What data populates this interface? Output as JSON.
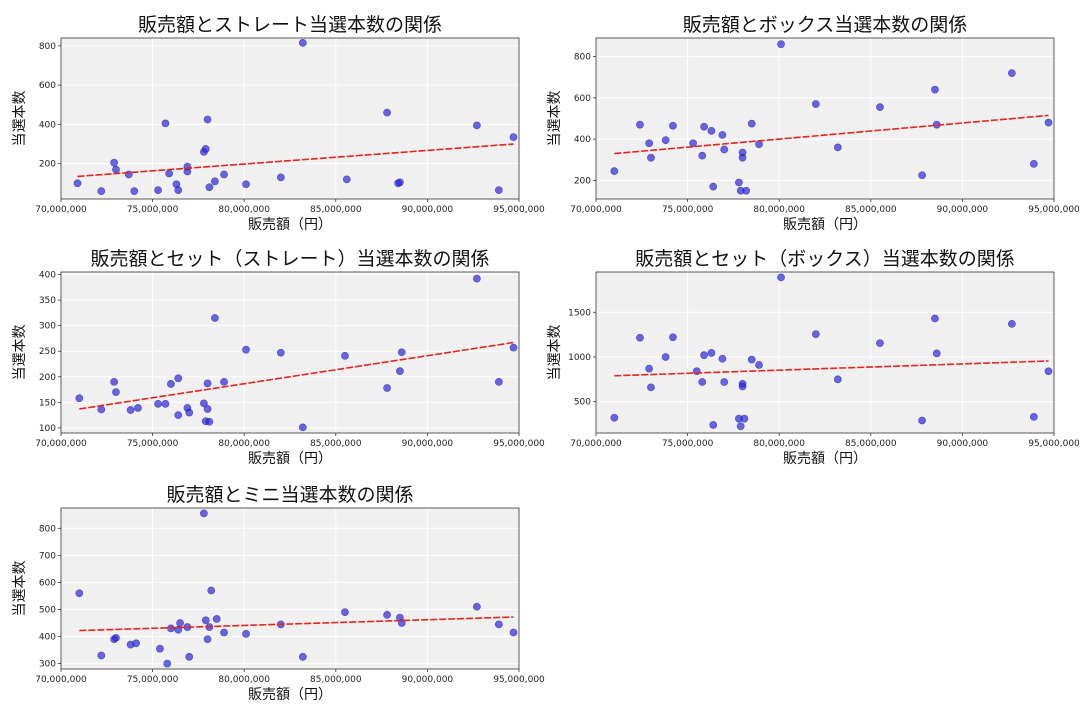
{
  "chart_data": [
    {
      "type": "scatter",
      "title": "販売額とストレート当選本数の関係",
      "xlabel": "販売額（円）",
      "ylabel": "当選本数",
      "xlim": [
        70000000,
        95000000
      ],
      "ylim": [
        20,
        840
      ],
      "x_ticks": [
        70000000,
        75000000,
        80000000,
        85000000,
        90000000,
        95000000
      ],
      "x_tick_labels": [
        "70,000,000",
        "75,000,000",
        "80,000,000",
        "85,000,000",
        "90,000,000",
        "95,000,000"
      ],
      "y_ticks": [
        200,
        400,
        600,
        800
      ],
      "y_tick_labels": [
        "200",
        "400",
        "600",
        "800"
      ],
      "x": [
        70900000,
        72200000,
        72900000,
        73000000,
        73700000,
        74000000,
        75300000,
        75700000,
        75900000,
        76300000,
        76400000,
        76900000,
        76900000,
        77800000,
        77900000,
        78000000,
        78100000,
        78400000,
        78900000,
        80100000,
        82000000,
        83200000,
        85600000,
        87800000,
        88400000,
        88500000,
        92700000,
        93900000,
        94700000
      ],
      "y": [
        100,
        60,
        205,
        170,
        145,
        60,
        65,
        405,
        150,
        95,
        65,
        185,
        160,
        260,
        275,
        425,
        80,
        110,
        145,
        95,
        130,
        815,
        120,
        460,
        100,
        105,
        395,
        65,
        335
      ],
      "trend": [
        135,
        300
      ]
    },
    {
      "type": "scatter",
      "title": "販売額とボックス当選本数の関係",
      "xlabel": "販売額（円）",
      "ylabel": "当選本数",
      "xlim": [
        70000000,
        95000000
      ],
      "ylim": [
        110,
        890
      ],
      "x_ticks": [
        70000000,
        75000000,
        80000000,
        85000000,
        90000000,
        95000000
      ],
      "x_tick_labels": [
        "70,000,000",
        "75,000,000",
        "80,000,000",
        "85,000,000",
        "90,000,000",
        "95,000,000"
      ],
      "y_ticks": [
        200,
        400,
        600,
        800
      ],
      "y_tick_labels": [
        "200",
        "400",
        "600",
        "800"
      ],
      "x": [
        71000000,
        72400000,
        72900000,
        73000000,
        73800000,
        74200000,
        75300000,
        75800000,
        75900000,
        76300000,
        76400000,
        76900000,
        77000000,
        77800000,
        77900000,
        78000000,
        78000000,
        78200000,
        78500000,
        78900000,
        80100000,
        82000000,
        83200000,
        85500000,
        87800000,
        88500000,
        88600000,
        92700000,
        93900000,
        94700000
      ],
      "y": [
        245,
        470,
        380,
        310,
        395,
        465,
        380,
        320,
        460,
        440,
        170,
        420,
        350,
        190,
        150,
        335,
        310,
        150,
        475,
        375,
        860,
        570,
        360,
        555,
        225,
        640,
        470,
        720,
        280,
        480
      ],
      "trend": [
        330,
        515
      ]
    },
    {
      "type": "scatter",
      "title": "販売額とセット（ストレート）当選本数の関係",
      "xlabel": "販売額（円）",
      "ylabel": "当選本数",
      "xlim": [
        70000000,
        95000000
      ],
      "ylim": [
        90,
        405
      ],
      "x_ticks": [
        70000000,
        75000000,
        80000000,
        85000000,
        90000000,
        95000000
      ],
      "x_tick_labels": [
        "70,000,000",
        "75,000,000",
        "80,000,000",
        "85,000,000",
        "90,000,000",
        "95,000,000"
      ],
      "y_ticks": [
        100,
        150,
        200,
        250,
        300,
        350,
        400
      ],
      "y_tick_labels": [
        "100",
        "150",
        "200",
        "250",
        "300",
        "350",
        "400"
      ],
      "x": [
        71000000,
        72200000,
        72900000,
        73000000,
        73800000,
        74200000,
        75300000,
        75700000,
        76000000,
        76400000,
        76400000,
        76900000,
        77000000,
        77800000,
        77900000,
        78000000,
        78000000,
        78100000,
        78400000,
        78900000,
        80100000,
        82000000,
        83200000,
        85500000,
        87800000,
        88500000,
        88600000,
        92700000,
        93900000,
        94700000
      ],
      "y": [
        158,
        136,
        190,
        170,
        135,
        139,
        147,
        147,
        186,
        125,
        197,
        139,
        130,
        148,
        113,
        187,
        137,
        112,
        315,
        190,
        253,
        247,
        101,
        241,
        178,
        211,
        248,
        392,
        190,
        257
      ],
      "trend": [
        137,
        267
      ]
    },
    {
      "type": "scatter",
      "title": "販売額とセット（ボックス）当選本数の関係",
      "xlabel": "販売額（円）",
      "ylabel": "当選本数",
      "xlim": [
        70000000,
        95000000
      ],
      "ylim": [
        150,
        1950
      ],
      "x_ticks": [
        70000000,
        75000000,
        80000000,
        85000000,
        90000000,
        95000000
      ],
      "x_tick_labels": [
        "70,000,000",
        "75,000,000",
        "80,000,000",
        "85,000,000",
        "90,000,000",
        "95,000,000"
      ],
      "y_ticks": [
        500,
        1000,
        1500
      ],
      "y_tick_labels": [
        "500",
        "1000",
        "1500"
      ],
      "x": [
        71000000,
        72400000,
        72900000,
        73000000,
        73800000,
        74200000,
        75500000,
        75800000,
        75900000,
        76300000,
        76400000,
        76900000,
        77000000,
        77800000,
        77900000,
        78000000,
        78000000,
        78100000,
        78500000,
        78900000,
        80100000,
        82000000,
        83200000,
        85500000,
        87800000,
        88500000,
        88600000,
        92700000,
        93900000,
        94700000
      ],
      "y": [
        320,
        1215,
        870,
        660,
        1000,
        1220,
        840,
        720,
        1020,
        1045,
        240,
        980,
        720,
        310,
        225,
        700,
        670,
        310,
        970,
        910,
        1890,
        1255,
        750,
        1155,
        290,
        1430,
        1040,
        1370,
        330,
        840
      ],
      "trend": [
        790,
        955
      ]
    },
    {
      "type": "scatter",
      "title": "販売額とミニ当選本数の関係",
      "xlabel": "販売額（円）",
      "ylabel": "当選本数",
      "xlim": [
        70000000,
        95000000
      ],
      "ylim": [
        280,
        875
      ],
      "x_ticks": [
        70000000,
        75000000,
        80000000,
        85000000,
        90000000,
        95000000
      ],
      "x_tick_labels": [
        "70,000,000",
        "75,000,000",
        "80,000,000",
        "85,000,000",
        "90,000,000",
        "95,000,000"
      ],
      "y_ticks": [
        300,
        400,
        500,
        600,
        700,
        800
      ],
      "y_tick_labels": [
        "300",
        "400",
        "500",
        "600",
        "700",
        "800"
      ],
      "x": [
        71000000,
        72200000,
        72900000,
        73000000,
        73800000,
        74100000,
        75400000,
        75800000,
        76000000,
        76400000,
        76500000,
        76900000,
        77000000,
        77800000,
        77900000,
        78000000,
        78100000,
        78200000,
        78500000,
        78900000,
        80100000,
        82000000,
        83200000,
        85500000,
        87800000,
        88500000,
        88600000,
        92700000,
        93900000,
        94700000
      ],
      "y": [
        560,
        330,
        390,
        395,
        370,
        375,
        355,
        300,
        430,
        425,
        450,
        435,
        325,
        855,
        460,
        390,
        435,
        570,
        465,
        415,
        410,
        445,
        325,
        490,
        480,
        470,
        450,
        510,
        445,
        415
      ],
      "trend": [
        422,
        472
      ]
    }
  ]
}
